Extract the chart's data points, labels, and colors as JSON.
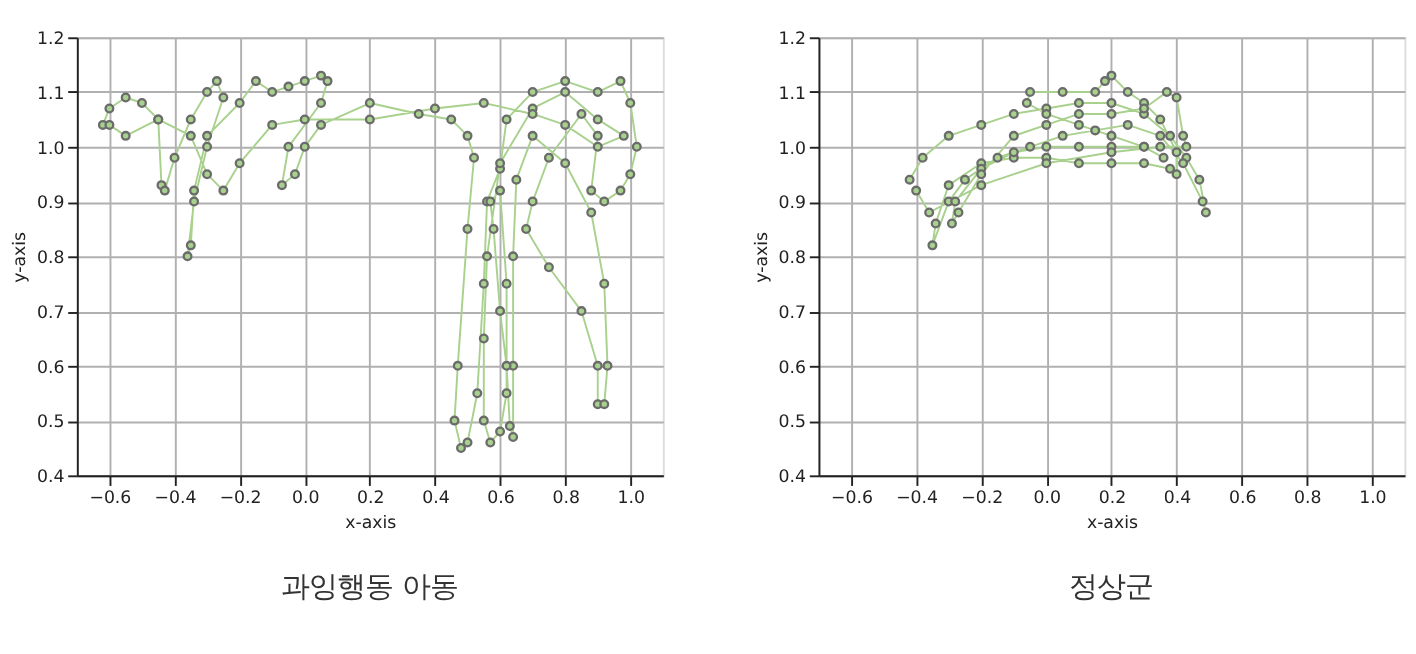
{
  "chart_data": [
    {
      "type": "line",
      "title": "과잉행동 아동",
      "xlabel": "x-axis",
      "ylabel": "y-axis",
      "xlim": [
        -0.7,
        1.1
      ],
      "ylim": [
        0.4,
        1.2
      ],
      "xticks": [
        {
          "value": -0.6,
          "label": "−0.6"
        },
        {
          "value": -0.4,
          "label": "−0.4"
        },
        {
          "value": -0.2,
          "label": "−0.2"
        },
        {
          "value": 0,
          "label": "0.0"
        },
        {
          "value": 0.2,
          "label": "0.2"
        },
        {
          "value": 0.4,
          "label": "0.4"
        },
        {
          "value": 0.6,
          "label": "0.6"
        },
        {
          "value": 0.8,
          "label": "0.8"
        },
        {
          "value": 1,
          "label": "1.0"
        }
      ],
      "yticks": [
        0.4,
        0.5,
        0.6,
        0.7,
        0.8,
        0.9,
        {
          "value": 1,
          "label": "1.0"
        },
        1.1,
        1.2
      ],
      "grid": true,
      "marker": "circle",
      "line_style": "solid",
      "series": [
        {
          "color": "#a9d18e",
          "x": [
            -0.62,
            -0.6,
            -0.55,
            -0.5,
            -0.45,
            -0.44,
            -0.43,
            -0.4,
            -0.35,
            -0.3,
            -0.27,
            -0.25,
            -0.3,
            -0.34,
            -0.36,
            -0.35,
            -0.34,
            -0.3,
            -0.2,
            -0.15,
            -0.1,
            -0.05,
            0.0,
            0.05,
            0.07,
            0.05,
            -0.05,
            -0.07,
            -0.03,
            0.0,
            0.05,
            0.2,
            0.35,
            0.45,
            0.5,
            0.52,
            0.5,
            0.47,
            0.46,
            0.48,
            0.5,
            0.53,
            0.55,
            0.56,
            0.6,
            0.62,
            0.7,
            0.8,
            0.9,
            0.97,
            1.0,
            1.02,
            1.0,
            0.97,
            0.92,
            0.88,
            0.9,
            0.85,
            0.75,
            0.7,
            0.68,
            0.75,
            0.85,
            0.9,
            0.9,
            0.92,
            0.93,
            0.92,
            0.88,
            0.8,
            0.7,
            0.65,
            0.64,
            0.64,
            0.64,
            0.63,
            0.62,
            0.6,
            0.58,
            0.57,
            0.6,
            0.62,
            0.62,
            0.6,
            0.57,
            0.55,
            0.55,
            0.56,
            0.6,
            0.7,
            0.8,
            0.9,
            0.98,
            0.9,
            0.8,
            0.7,
            0.55,
            0.4,
            0.2,
            0.0,
            -0.1,
            -0.2,
            -0.25,
            -0.3,
            -0.35,
            -0.45,
            -0.55,
            -0.6
          ],
          "values": [
            1.04,
            1.07,
            1.09,
            1.08,
            1.05,
            0.93,
            0.92,
            0.98,
            1.05,
            1.1,
            1.12,
            1.09,
            1.0,
            0.9,
            0.8,
            0.82,
            0.92,
            1.02,
            1.08,
            1.12,
            1.1,
            1.11,
            1.12,
            1.13,
            1.12,
            1.08,
            1.0,
            0.93,
            0.95,
            1.0,
            1.04,
            1.08,
            1.06,
            1.05,
            1.02,
            0.98,
            0.85,
            0.6,
            0.5,
            0.45,
            0.46,
            0.55,
            0.75,
            0.9,
            0.96,
            1.05,
            1.1,
            1.12,
            1.1,
            1.12,
            1.08,
            1.0,
            0.95,
            0.92,
            0.9,
            0.92,
            1.02,
            1.06,
            0.98,
            0.9,
            0.85,
            0.78,
            0.7,
            0.6,
            0.53,
            0.53,
            0.6,
            0.75,
            0.88,
            0.97,
            1.02,
            0.94,
            0.8,
            0.6,
            0.47,
            0.49,
            0.6,
            0.7,
            0.85,
            0.9,
            0.92,
            0.75,
            0.55,
            0.48,
            0.46,
            0.5,
            0.65,
            0.8,
            0.97,
            1.07,
            1.1,
            1.05,
            1.02,
            1.0,
            1.04,
            1.06,
            1.08,
            1.07,
            1.05,
            1.05,
            1.04,
            0.97,
            0.92,
            0.95,
            1.02,
            1.05,
            1.02,
            1.04
          ]
        }
      ]
    },
    {
      "type": "line",
      "title": "정상군",
      "xlabel": "x-axis",
      "ylabel": "y-axis",
      "xlim": [
        -0.7,
        1.1
      ],
      "ylim": [
        0.4,
        1.2
      ],
      "xticks": [
        {
          "value": -0.6,
          "label": "−0.6"
        },
        {
          "value": -0.4,
          "label": "−0.4"
        },
        {
          "value": -0.2,
          "label": "−0.2"
        },
        {
          "value": 0,
          "label": "0.0"
        },
        {
          "value": 0.2,
          "label": "0.2"
        },
        {
          "value": 0.4,
          "label": "0.4"
        },
        {
          "value": 0.6,
          "label": "0.6"
        },
        {
          "value": 0.8,
          "label": "0.8"
        },
        {
          "value": 1,
          "label": "1.0"
        }
      ],
      "yticks": [
        0.4,
        0.5,
        0.6,
        0.7,
        0.8,
        0.9,
        {
          "value": 1,
          "label": "1.0"
        },
        1.1,
        1.2
      ],
      "grid": true,
      "marker": "circle",
      "line_style": "solid",
      "series": [
        {
          "color": "#a9d18e",
          "x": [
            -0.42,
            -0.38,
            -0.3,
            -0.2,
            -0.1,
            0.0,
            0.1,
            0.2,
            0.3,
            0.38,
            0.43,
            0.47,
            0.49,
            0.48,
            0.42,
            0.35,
            0.25,
            0.15,
            0.05,
            -0.05,
            -0.15,
            -0.25,
            -0.3,
            -0.35,
            -0.34,
            -0.3,
            -0.2,
            -0.1,
            0.0,
            0.1,
            0.2,
            0.3,
            0.38,
            0.4,
            0.4,
            0.35,
            0.3,
            0.25,
            0.2,
            0.18,
            0.15,
            0.05,
            -0.05,
            -0.06,
            0.0,
            0.1,
            0.2,
            0.3,
            0.36,
            0.3,
            0.2,
            0.1,
            0.0,
            -0.1,
            -0.2,
            -0.28,
            -0.29,
            -0.27,
            -0.2,
            -0.1,
            0.0,
            0.1,
            0.2,
            0.3,
            0.37,
            0.4,
            0.42,
            0.43,
            0.35,
            0.2,
            0.0,
            -0.2,
            -0.36,
            -0.4
          ],
          "values": [
            0.94,
            0.98,
            1.02,
            1.04,
            1.06,
            1.07,
            1.08,
            1.08,
            1.06,
            1.02,
            0.98,
            0.94,
            0.88,
            0.9,
            0.97,
            1.02,
            1.04,
            1.03,
            1.02,
            1.0,
            0.98,
            0.94,
            0.9,
            0.82,
            0.86,
            0.93,
            0.97,
            0.98,
            0.98,
            0.97,
            0.97,
            0.97,
            0.96,
            0.95,
            0.99,
            1.05,
            1.08,
            1.1,
            1.13,
            1.12,
            1.1,
            1.1,
            1.1,
            1.08,
            1.06,
            1.04,
            1.02,
            1.0,
            0.98,
            1.0,
            1.0,
            1.0,
            1.0,
            0.99,
            0.96,
            0.9,
            0.86,
            0.88,
            0.95,
            1.02,
            1.04,
            1.06,
            1.06,
            1.07,
            1.1,
            1.09,
            1.02,
            1.0,
            1.0,
            0.99,
            0.97,
            0.93,
            0.88,
            0.92
          ]
        }
      ]
    }
  ]
}
